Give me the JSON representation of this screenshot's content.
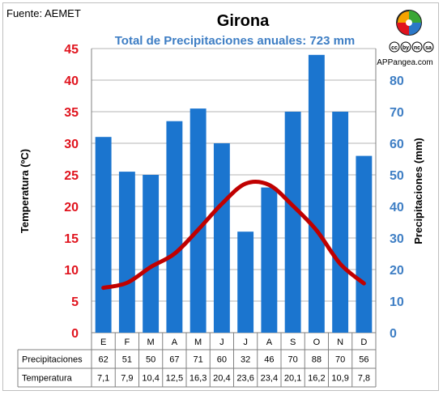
{
  "source": "Fuente: AEMET",
  "brand": "APPangea.com",
  "license_icons": [
    "cc",
    "by",
    "nc",
    "sa"
  ],
  "chart_data": {
    "type": "bar-line-combo",
    "title": "Girona",
    "subtitle": "Total de Precipitaciones anuales: 723 mm",
    "categories": [
      "E",
      "F",
      "M",
      "A",
      "M",
      "J",
      "J",
      "A",
      "S",
      "O",
      "N",
      "D"
    ],
    "y_left": {
      "label": "Temperatura (ºC)",
      "range": [
        0,
        45
      ],
      "ticks": [
        "0",
        "5",
        "10",
        "15",
        "20",
        "25",
        "30",
        "35",
        "40",
        "45"
      ],
      "color": "#e0141e"
    },
    "y_right": {
      "label": "Precipitaciones (mm)",
      "range": [
        0,
        90
      ],
      "ticks": [
        "0",
        "10",
        "20",
        "30",
        "40",
        "50",
        "60",
        "70",
        "80"
      ],
      "color": "#3e7ec4"
    },
    "series": [
      {
        "name": "Precipitaciones",
        "type": "bar",
        "axis": "right",
        "color": "#1b75cf",
        "values": [
          62,
          51,
          50,
          67,
          71,
          60,
          32,
          46,
          70,
          88,
          70,
          56
        ],
        "labels": [
          "62",
          "51",
          "50",
          "67",
          "71",
          "60",
          "32",
          "46",
          "70",
          "88",
          "70",
          "56"
        ]
      },
      {
        "name": "Temperatura",
        "type": "line",
        "axis": "left",
        "color": "#c00000",
        "values": [
          7.1,
          7.9,
          10.4,
          12.5,
          16.3,
          20.4,
          23.6,
          23.4,
          20.1,
          16.2,
          10.9,
          7.8
        ],
        "labels": [
          "7,1",
          "7,9",
          "10,4",
          "12,5",
          "16,3",
          "20,4",
          "23,6",
          "23,4",
          "20,1",
          "16,2",
          "10,9",
          "7,8"
        ]
      }
    ],
    "grid": "horizontal"
  }
}
